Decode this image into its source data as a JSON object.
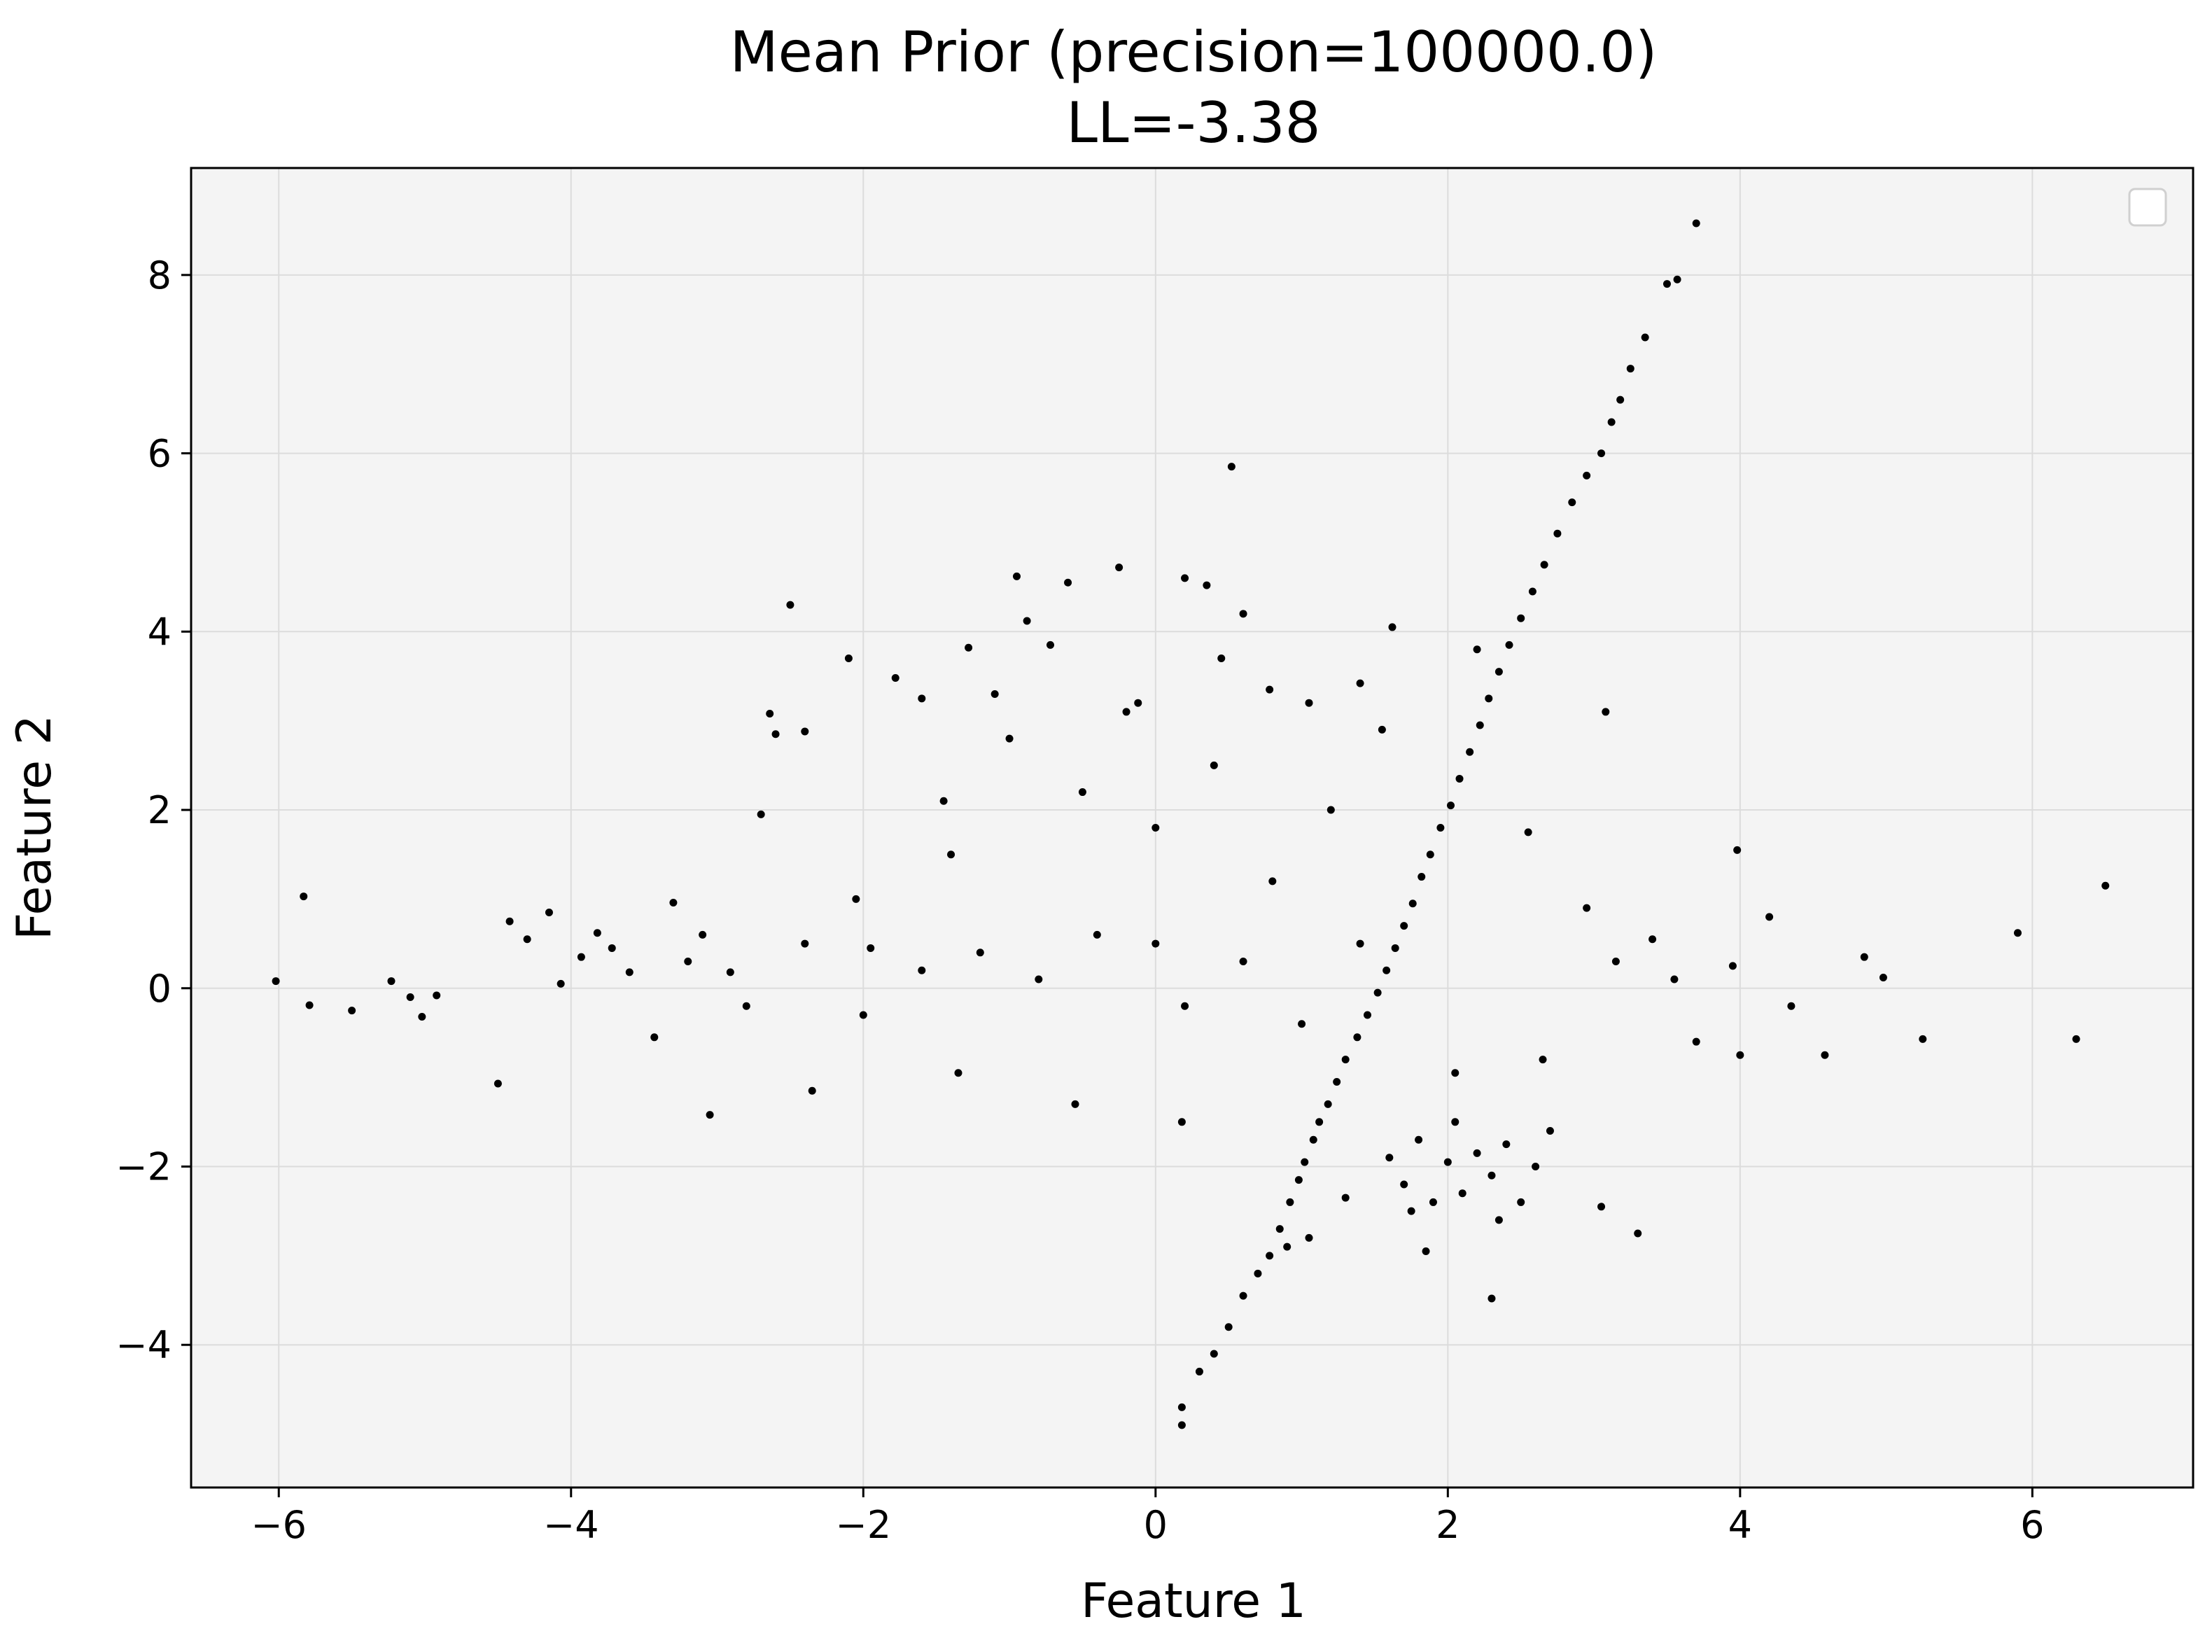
{
  "chart_data": {
    "type": "scatter",
    "title": "Mean Prior (precision=100000.0)",
    "subtitle": "LL=-3.38",
    "xlabel": "Feature 1",
    "ylabel": "Feature 2",
    "xlim": [
      -6.6,
      7.1
    ],
    "ylim": [
      -5.6,
      9.2
    ],
    "xticks": [
      -6,
      -4,
      -2,
      0,
      2,
      4,
      6
    ],
    "yticks": [
      -4,
      -2,
      0,
      2,
      4,
      6,
      8
    ],
    "xtick_labels": [
      "−6",
      "−4",
      "−2",
      "0",
      "2",
      "4",
      "6"
    ],
    "ytick_labels": [
      "−4",
      "−2",
      "0",
      "2",
      "4",
      "6",
      "8"
    ],
    "grid": true,
    "legend": "top-right (empty)",
    "colors": {
      "points": "#000000",
      "plot_background": "#f4f4f4",
      "grid": "#dcdcdc"
    },
    "series": [
      {
        "values": [
          [
            -6.02,
            0.08
          ],
          [
            -5.83,
            1.03
          ],
          [
            -5.79,
            -0.19
          ],
          [
            -5.5,
            -0.25
          ],
          [
            -5.23,
            0.08
          ],
          [
            -5.1,
            -0.1
          ],
          [
            -5.02,
            -0.32
          ],
          [
            -4.92,
            -0.08
          ],
          [
            -4.5,
            -1.07
          ],
          [
            -4.42,
            0.75
          ],
          [
            -4.3,
            0.55
          ],
          [
            -4.15,
            0.85
          ],
          [
            -4.07,
            0.05
          ],
          [
            -3.93,
            0.35
          ],
          [
            -3.82,
            0.62
          ],
          [
            -3.72,
            0.45
          ],
          [
            -3.6,
            0.18
          ],
          [
            -3.43,
            -0.55
          ],
          [
            -3.3,
            0.96
          ],
          [
            -3.1,
            0.6
          ],
          [
            -3.05,
            -1.42
          ],
          [
            -2.91,
            0.18
          ],
          [
            -2.7,
            1.95
          ],
          [
            -2.64,
            3.08
          ],
          [
            -2.6,
            2.85
          ],
          [
            -2.5,
            4.3
          ],
          [
            -2.4,
            2.88
          ],
          [
            -2.35,
            -1.15
          ],
          [
            -2.1,
            3.7
          ],
          [
            -2.05,
            1.0
          ],
          [
            -1.95,
            0.45
          ],
          [
            -1.78,
            3.48
          ],
          [
            -1.6,
            3.25
          ],
          [
            -1.45,
            2.1
          ],
          [
            -1.35,
            -0.95
          ],
          [
            -1.28,
            3.82
          ],
          [
            -1.1,
            3.3
          ],
          [
            -0.95,
            4.62
          ],
          [
            -0.88,
            4.12
          ],
          [
            -0.72,
            3.85
          ],
          [
            -0.6,
            4.55
          ],
          [
            -0.55,
            -1.3
          ],
          [
            -0.25,
            4.72
          ],
          [
            -0.12,
            3.2
          ],
          [
            0.0,
            0.5
          ],
          [
            0.18,
            -1.5
          ],
          [
            0.2,
            4.6
          ],
          [
            0.35,
            4.52
          ],
          [
            0.45,
            3.7
          ],
          [
            0.52,
            5.85
          ],
          [
            0.6,
            4.2
          ],
          [
            0.78,
            3.35
          ],
          [
            0.9,
            -2.9
          ],
          [
            1.05,
            3.2
          ],
          [
            1.05,
            -2.8
          ],
          [
            1.3,
            -2.35
          ],
          [
            1.4,
            3.42
          ],
          [
            1.55,
            2.9
          ],
          [
            1.62,
            4.05
          ],
          [
            1.85,
            -2.95
          ],
          [
            2.05,
            -0.95
          ],
          [
            2.2,
            3.8
          ],
          [
            2.3,
            -3.48
          ],
          [
            2.55,
            1.75
          ],
          [
            2.65,
            -0.8
          ],
          [
            2.95,
            0.9
          ],
          [
            3.05,
            -2.45
          ],
          [
            3.08,
            3.1
          ],
          [
            3.15,
            0.3
          ],
          [
            3.3,
            -2.75
          ],
          [
            3.4,
            0.55
          ],
          [
            3.55,
            0.1
          ],
          [
            3.7,
            -0.6
          ],
          [
            3.95,
            0.25
          ],
          [
            3.98,
            1.55
          ],
          [
            4.0,
            -0.75
          ],
          [
            4.2,
            0.8
          ],
          [
            4.35,
            -0.2
          ],
          [
            4.58,
            -0.75
          ],
          [
            4.85,
            0.35
          ],
          [
            4.98,
            0.12
          ],
          [
            5.25,
            -0.57
          ],
          [
            5.9,
            0.62
          ],
          [
            6.3,
            -0.57
          ],
          [
            6.5,
            1.15
          ],
          [
            0.18,
            -4.9
          ],
          [
            0.18,
            -4.7
          ],
          [
            0.3,
            -4.3
          ],
          [
            0.4,
            -4.1
          ],
          [
            0.5,
            -3.8
          ],
          [
            0.6,
            -3.45
          ],
          [
            0.7,
            -3.2
          ],
          [
            0.78,
            -3.0
          ],
          [
            0.85,
            -2.7
          ],
          [
            0.92,
            -2.4
          ],
          [
            0.98,
            -2.15
          ],
          [
            1.02,
            -1.95
          ],
          [
            1.08,
            -1.7
          ],
          [
            1.12,
            -1.5
          ],
          [
            1.18,
            -1.3
          ],
          [
            1.24,
            -1.05
          ],
          [
            1.3,
            -0.8
          ],
          [
            1.38,
            -0.55
          ],
          [
            1.45,
            -0.3
          ],
          [
            1.52,
            -0.05
          ],
          [
            1.58,
            0.2
          ],
          [
            1.64,
            0.45
          ],
          [
            1.7,
            0.7
          ],
          [
            1.76,
            0.95
          ],
          [
            1.82,
            1.25
          ],
          [
            1.88,
            1.5
          ],
          [
            1.95,
            1.8
          ],
          [
            2.02,
            2.05
          ],
          [
            2.08,
            2.35
          ],
          [
            2.15,
            2.65
          ],
          [
            2.22,
            2.95
          ],
          [
            2.28,
            3.25
          ],
          [
            2.35,
            3.55
          ],
          [
            2.42,
            3.85
          ],
          [
            2.5,
            4.15
          ],
          [
            2.58,
            4.45
          ],
          [
            2.66,
            4.75
          ],
          [
            2.75,
            5.1
          ],
          [
            2.85,
            5.45
          ],
          [
            2.95,
            5.75
          ],
          [
            3.05,
            6.0
          ],
          [
            3.12,
            6.35
          ],
          [
            3.18,
            6.6
          ],
          [
            3.25,
            6.95
          ],
          [
            3.35,
            7.3
          ],
          [
            3.5,
            7.9
          ],
          [
            3.57,
            7.95
          ],
          [
            3.7,
            8.58
          ],
          [
            1.6,
            -1.9
          ],
          [
            1.7,
            -2.2
          ],
          [
            1.8,
            -1.7
          ],
          [
            1.9,
            -2.4
          ],
          [
            2.0,
            -1.95
          ],
          [
            2.1,
            -2.3
          ],
          [
            2.2,
            -1.85
          ],
          [
            2.3,
            -2.1
          ],
          [
            2.4,
            -1.75
          ],
          [
            2.5,
            -2.4
          ],
          [
            2.6,
            -2.0
          ],
          [
            2.7,
            -1.6
          ],
          [
            1.75,
            -2.5
          ],
          [
            2.35,
            -2.6
          ],
          [
            2.05,
            -1.5
          ],
          [
            -1.2,
            0.4
          ],
          [
            -0.8,
            0.1
          ],
          [
            -0.4,
            0.6
          ],
          [
            0.2,
            -0.2
          ],
          [
            0.6,
            0.3
          ],
          [
            1.0,
            -0.4
          ],
          [
            -1.6,
            0.2
          ],
          [
            -2.0,
            -0.3
          ],
          [
            -2.4,
            0.5
          ],
          [
            -2.8,
            -0.2
          ],
          [
            -3.2,
            0.3
          ],
          [
            1.4,
            0.5
          ],
          [
            -0.5,
            2.2
          ],
          [
            0.0,
            1.8
          ],
          [
            0.4,
            2.5
          ],
          [
            -1.0,
            2.8
          ],
          [
            0.8,
            1.2
          ],
          [
            -0.2,
            3.1
          ],
          [
            -1.4,
            1.5
          ],
          [
            1.2,
            2.0
          ]
        ]
      }
    ]
  }
}
